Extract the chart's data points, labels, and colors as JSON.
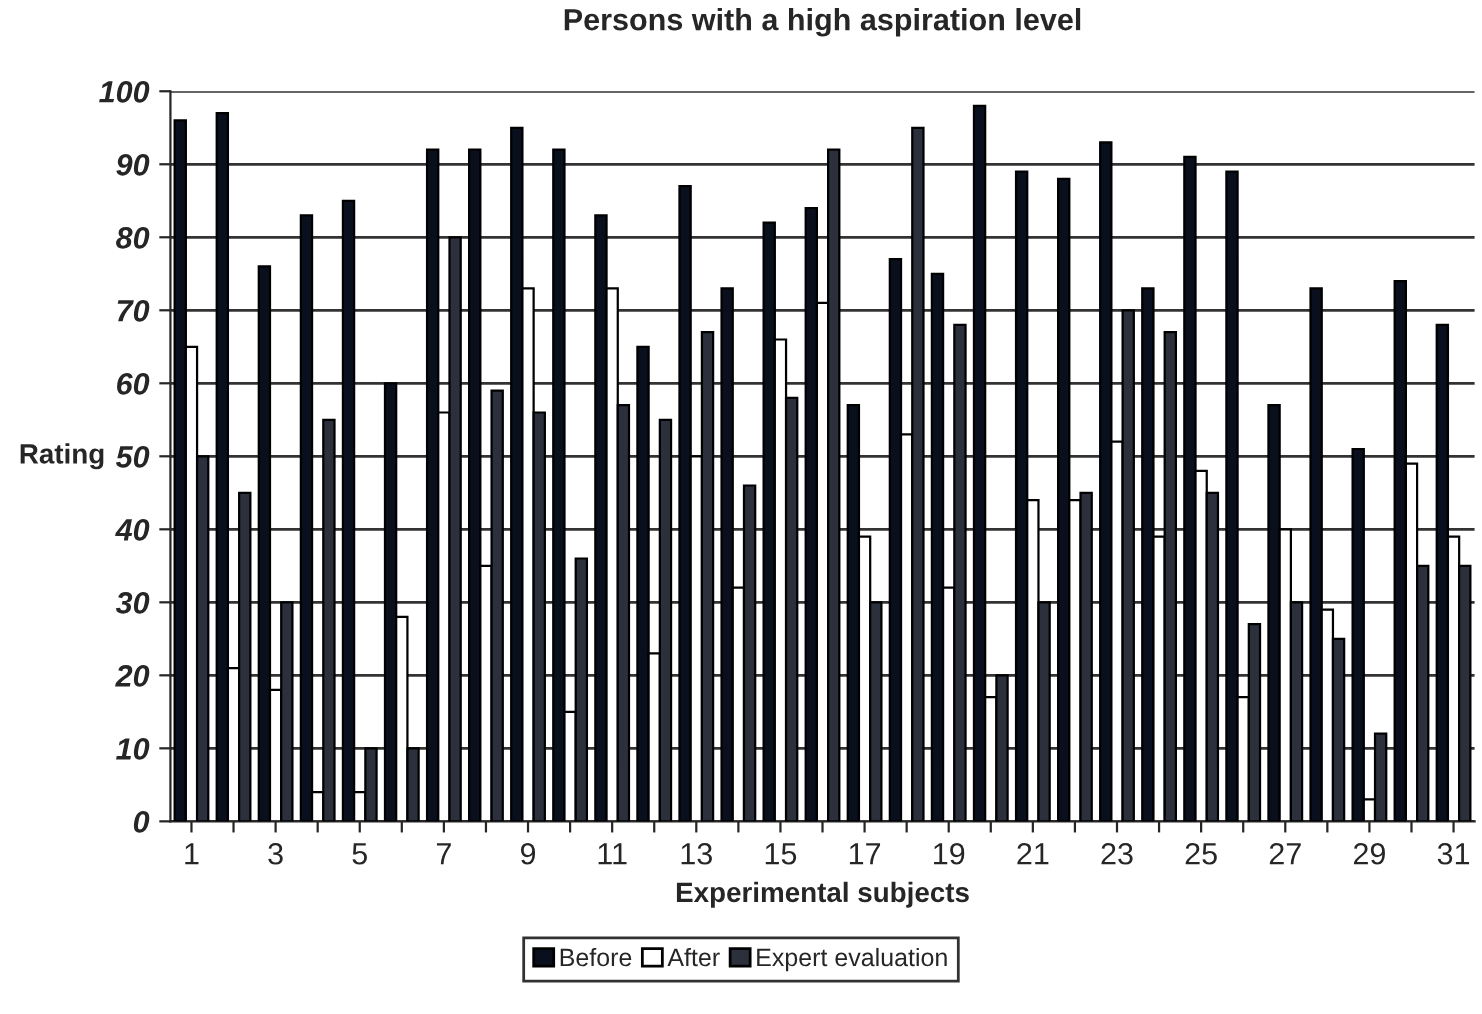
{
  "chart_data": {
    "type": "bar",
    "title": "Persons with a high aspiration level",
    "xlabel": "Experimental subjects",
    "ylabel": "Rating",
    "categories": [
      "1",
      null,
      "3",
      null,
      "5",
      null,
      "7",
      null,
      "9",
      null,
      "11",
      null,
      "13",
      null,
      "15",
      null,
      "17",
      null,
      "19",
      null,
      "21",
      null,
      "23",
      null,
      "25",
      null,
      "27",
      null,
      "29",
      null,
      "31"
    ],
    "series": [
      {
        "name": "Before",
        "color": "#0a0f1e",
        "values": [
          96,
          97,
          76,
          83,
          85,
          60,
          92,
          92,
          95,
          92,
          83,
          65,
          87,
          73,
          82,
          84,
          57,
          77,
          75,
          98,
          89,
          88,
          93,
          73,
          91,
          89,
          57,
          73,
          51,
          74,
          68
        ]
      },
      {
        "name": "After",
        "color": "#ffffff",
        "values": [
          65,
          21,
          18,
          4,
          4,
          28,
          56,
          35,
          73,
          15,
          73,
          23,
          50,
          32,
          66,
          71,
          39,
          53,
          32,
          17,
          44,
          44,
          52,
          39,
          48,
          17,
          40,
          29,
          3,
          49,
          39
        ]
      },
      {
        "name": "Expert evaluation",
        "color": "#2b303c",
        "values": [
          50,
          45,
          30,
          55,
          10,
          10,
          80,
          59,
          56,
          36,
          57,
          55,
          67,
          46,
          58,
          92,
          30,
          95,
          68,
          20,
          30,
          45,
          70,
          67,
          45,
          27,
          30,
          25,
          12,
          35,
          35
        ]
      }
    ],
    "ylim": [
      0,
      100
    ],
    "yticks": [
      0,
      10,
      20,
      30,
      40,
      50,
      60,
      70,
      80,
      90,
      100
    ],
    "grid": "y",
    "legend": "bottom"
  }
}
